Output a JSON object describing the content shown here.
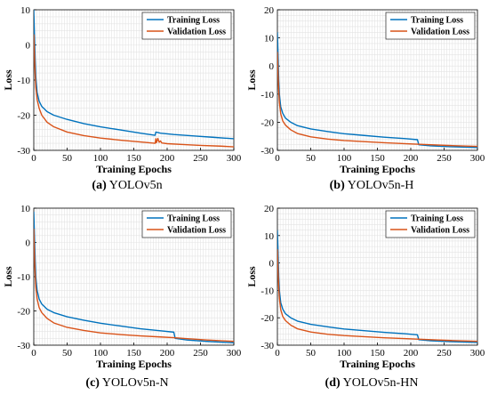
{
  "colors": {
    "training": "#0072bd",
    "validation": "#d95319",
    "grid": "#e3e3e3",
    "axis": "#000000"
  },
  "chart_data": [
    {
      "type": "line",
      "caption_letter": "(a)",
      "caption_text": "YOLOv5n",
      "xlabel": "Training Epochs",
      "ylabel": "Loss",
      "xlim": [
        0,
        300
      ],
      "ylim": [
        -30,
        10
      ],
      "xticks": [
        "0",
        "50",
        "100",
        "150",
        "200",
        "250",
        "300"
      ],
      "yticks": [
        "10",
        "0",
        "-10",
        "-20",
        "-30"
      ],
      "grid": true,
      "legend_position": "top-right",
      "series": [
        {
          "name": "Training Loss",
          "color": "#0072bd",
          "x": [
            0,
            1,
            2,
            3,
            5,
            8,
            12,
            20,
            30,
            50,
            75,
            100,
            130,
            160,
            182,
            183,
            190,
            210,
            240,
            270,
            300
          ],
          "y": [
            10,
            3,
            -4,
            -9,
            -13.5,
            -16,
            -17.5,
            -19,
            -20,
            -21.2,
            -22.4,
            -23.3,
            -24.2,
            -25.1,
            -25.7,
            -24.8,
            -25.1,
            -25.5,
            -25.9,
            -26.3,
            -26.7
          ]
        },
        {
          "name": "Validation Loss",
          "color": "#d95319",
          "x": [
            0,
            1,
            2,
            3,
            5,
            8,
            12,
            20,
            30,
            50,
            75,
            100,
            130,
            160,
            182,
            183,
            184,
            186,
            188,
            190,
            192,
            200,
            220,
            250,
            280,
            300
          ],
          "y": [
            3,
            -3,
            -8,
            -12,
            -15.5,
            -18,
            -20,
            -22,
            -23.3,
            -24.8,
            -25.8,
            -26.5,
            -27.1,
            -27.6,
            -28,
            -26.7,
            -27.8,
            -26.6,
            -27.7,
            -27.3,
            -27.9,
            -28.1,
            -28.3,
            -28.6,
            -28.8,
            -29
          ]
        }
      ]
    },
    {
      "type": "line",
      "caption_letter": "(b)",
      "caption_text": "YOLOv5n-H",
      "xlabel": "Training Epochs",
      "ylabel": "Loss",
      "xlim": [
        0,
        300
      ],
      "ylim": [
        -30,
        20
      ],
      "xticks": [
        "0",
        "50",
        "100",
        "150",
        "200",
        "250",
        "300"
      ],
      "yticks": [
        "20",
        "10",
        "0",
        "-10",
        "-20",
        "-30"
      ],
      "grid": true,
      "legend_position": "top-right",
      "series": [
        {
          "name": "Training Loss",
          "color": "#0072bd",
          "x": [
            0,
            1,
            2,
            3,
            5,
            8,
            12,
            20,
            30,
            50,
            75,
            100,
            130,
            160,
            190,
            210,
            212,
            230,
            260,
            300
          ],
          "y": [
            12,
            4,
            -5,
            -10,
            -14.5,
            -16.8,
            -18.5,
            -20,
            -21.2,
            -22.4,
            -23.3,
            -24.1,
            -24.7,
            -25.3,
            -25.8,
            -26.2,
            -28,
            -28.4,
            -28.7,
            -29
          ]
        },
        {
          "name": "Validation Loss",
          "color": "#d95319",
          "x": [
            0,
            1,
            2,
            3,
            5,
            8,
            12,
            20,
            30,
            50,
            75,
            100,
            130,
            160,
            190,
            210,
            230,
            260,
            300
          ],
          "y": [
            5,
            -3,
            -9,
            -13,
            -17,
            -19.5,
            -21,
            -22.7,
            -24,
            -25.2,
            -26,
            -26.5,
            -26.9,
            -27.3,
            -27.6,
            -27.8,
            -28,
            -28.3,
            -28.6
          ]
        }
      ]
    },
    {
      "type": "line",
      "caption_letter": "(c)",
      "caption_text": "YOLOv5n-N",
      "xlabel": "Training Epochs",
      "ylabel": "Loss",
      "xlim": [
        0,
        300
      ],
      "ylim": [
        -30,
        10
      ],
      "xticks": [
        "0",
        "50",
        "100",
        "150",
        "200",
        "250",
        "300"
      ],
      "yticks": [
        "10",
        "0",
        "-10",
        "-20",
        "-30"
      ],
      "grid": true,
      "legend_position": "top-right",
      "series": [
        {
          "name": "Training Loss",
          "color": "#0072bd",
          "x": [
            0,
            1,
            2,
            3,
            5,
            8,
            12,
            20,
            30,
            50,
            75,
            100,
            130,
            160,
            190,
            210,
            212,
            230,
            260,
            300
          ],
          "y": [
            9,
            2,
            -5,
            -10,
            -14,
            -16.5,
            -18,
            -19.5,
            -20.5,
            -21.7,
            -22.7,
            -23.6,
            -24.4,
            -25.2,
            -25.8,
            -26.2,
            -28,
            -28.5,
            -28.9,
            -29.3
          ]
        },
        {
          "name": "Validation Loss",
          "color": "#d95319",
          "x": [
            0,
            1,
            2,
            3,
            5,
            8,
            12,
            20,
            30,
            50,
            75,
            100,
            130,
            160,
            190,
            210,
            230,
            260,
            300
          ],
          "y": [
            4,
            -4,
            -9,
            -13,
            -16.5,
            -19,
            -20.5,
            -22.2,
            -23.5,
            -24.8,
            -25.7,
            -26.4,
            -26.9,
            -27.3,
            -27.6,
            -27.8,
            -28.1,
            -28.5,
            -28.9
          ]
        }
      ]
    },
    {
      "type": "line",
      "caption_letter": "(d)",
      "caption_text": "YOLOv5n-HN",
      "xlabel": "Training Epochs",
      "ylabel": "Loss",
      "xlim": [
        0,
        300
      ],
      "ylim": [
        -30,
        20
      ],
      "xticks": [
        "0",
        "50",
        "100",
        "150",
        "200",
        "250",
        "300"
      ],
      "yticks": [
        "20",
        "10",
        "0",
        "-10",
        "-20",
        "-30"
      ],
      "grid": true,
      "legend_position": "top-right",
      "series": [
        {
          "name": "Training Loss",
          "color": "#0072bd",
          "x": [
            0,
            1,
            2,
            3,
            5,
            8,
            12,
            20,
            30,
            50,
            75,
            100,
            130,
            160,
            190,
            210,
            212,
            230,
            260,
            300
          ],
          "y": [
            12,
            4,
            -5,
            -10,
            -14.5,
            -16.8,
            -18.5,
            -20,
            -21.2,
            -22.4,
            -23.3,
            -24.1,
            -24.7,
            -25.3,
            -25.8,
            -26.2,
            -28,
            -28.4,
            -28.7,
            -29
          ]
        },
        {
          "name": "Validation Loss",
          "color": "#d95319",
          "x": [
            0,
            1,
            2,
            3,
            5,
            8,
            12,
            20,
            30,
            50,
            75,
            100,
            130,
            160,
            190,
            210,
            230,
            260,
            300
          ],
          "y": [
            5,
            -3,
            -9,
            -13,
            -17,
            -19.5,
            -21,
            -22.7,
            -24,
            -25.2,
            -26,
            -26.5,
            -26.9,
            -27.3,
            -27.6,
            -27.8,
            -28,
            -28.3,
            -28.6
          ]
        }
      ]
    }
  ]
}
